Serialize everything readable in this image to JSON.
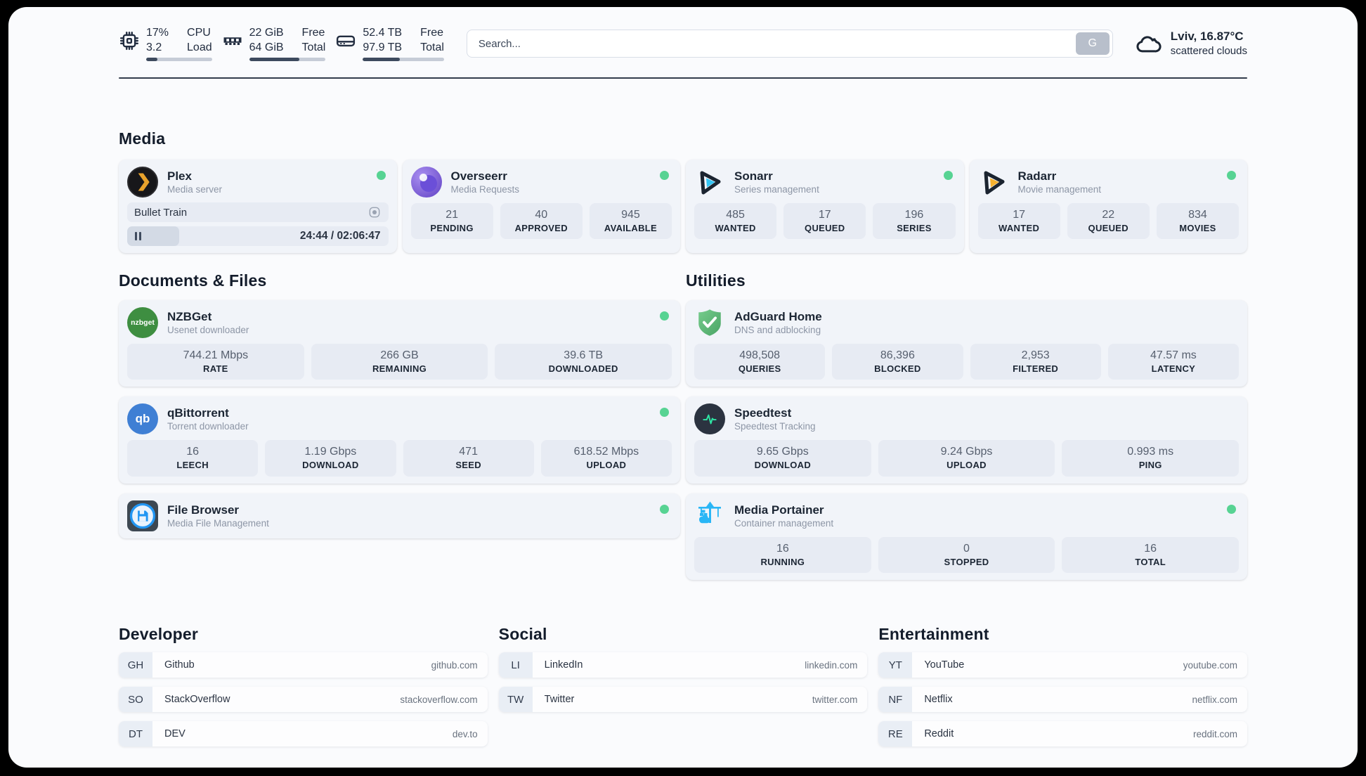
{
  "colors": {
    "status_online": "#57d393",
    "plex_orange": "#e8a22c",
    "overseerr_purple": "#8265d8",
    "sonarr_cyan": "#35c5f4",
    "radarr_yellow": "#f5b12f",
    "nzbget_green": "#3e8e41",
    "qbittorrent_blue": "#3f7fd4",
    "adguard_green": "#5cb85c",
    "speedtest_pulse_green": "#2ee6a4",
    "portainer_blue": "#29b6f6"
  },
  "header": {
    "stats": [
      {
        "icon": "cpu-icon",
        "value_top": "17%",
        "label_top": "CPU",
        "value_bottom": "3.2",
        "label_bottom": "Load",
        "progress": 17
      },
      {
        "icon": "ram-icon",
        "value_top": "22 GiB",
        "label_top": "Free",
        "value_bottom": "64 GiB",
        "label_bottom": "Total",
        "progress": 66
      },
      {
        "icon": "disk-icon",
        "value_top": "52.4 TB",
        "label_top": "Free",
        "value_bottom": "97.9 TB",
        "label_bottom": "Total",
        "progress": 46
      }
    ],
    "search": {
      "placeholder": "Search...",
      "button_label": "G"
    },
    "weather": {
      "location": "Lviv, 16.87°C",
      "condition": "scattered clouds"
    }
  },
  "sections": {
    "media": {
      "title": "Media",
      "apps": [
        {
          "name": "Plex",
          "description": "Media server",
          "online": true,
          "now_playing": {
            "title": "Bullet Train",
            "time": "24:44 / 02:06:47",
            "progress_percent": 20
          }
        },
        {
          "name": "Overseerr",
          "description": "Media Requests",
          "online": true,
          "stats": [
            {
              "value": "21",
              "label": "PENDING"
            },
            {
              "value": "40",
              "label": "APPROVED"
            },
            {
              "value": "945",
              "label": "AVAILABLE"
            }
          ]
        },
        {
          "name": "Sonarr",
          "description": "Series management",
          "online": true,
          "stats": [
            {
              "value": "485",
              "label": "WANTED"
            },
            {
              "value": "17",
              "label": "QUEUED"
            },
            {
              "value": "196",
              "label": "SERIES"
            }
          ]
        },
        {
          "name": "Radarr",
          "description": "Movie management",
          "online": true,
          "stats": [
            {
              "value": "17",
              "label": "WANTED"
            },
            {
              "value": "22",
              "label": "QUEUED"
            },
            {
              "value": "834",
              "label": "MOVIES"
            }
          ]
        }
      ]
    },
    "documents": {
      "title": "Documents & Files",
      "apps": [
        {
          "name": "NZBGet",
          "description": "Usenet downloader",
          "online": true,
          "icon_text": "nzbget",
          "stats": [
            {
              "value": "744.21 Mbps",
              "label": "RATE"
            },
            {
              "value": "266 GB",
              "label": "REMAINING"
            },
            {
              "value": "39.6 TB",
              "label": "DOWNLOADED"
            }
          ]
        },
        {
          "name": "qBittorrent",
          "description": "Torrent downloader",
          "online": true,
          "icon_text": "qb",
          "stats": [
            {
              "value": "16",
              "label": "LEECH"
            },
            {
              "value": "1.19 Gbps",
              "label": "DOWNLOAD"
            },
            {
              "value": "471",
              "label": "SEED"
            },
            {
              "value": "618.52 Mbps",
              "label": "UPLOAD"
            }
          ]
        },
        {
          "name": "File Browser",
          "description": "Media File Management",
          "online": true
        }
      ]
    },
    "utilities": {
      "title": "Utilities",
      "apps": [
        {
          "name": "AdGuard Home",
          "description": "DNS and adblocking",
          "online": false,
          "stats": [
            {
              "value": "498,508",
              "label": "QUERIES"
            },
            {
              "value": "86,396",
              "label": "BLOCKED"
            },
            {
              "value": "2,953",
              "label": "FILTERED"
            },
            {
              "value": "47.57 ms",
              "label": "LATENCY"
            }
          ]
        },
        {
          "name": "Speedtest",
          "description": "Speedtest Tracking",
          "online": false,
          "stats": [
            {
              "value": "9.65 Gbps",
              "label": "DOWNLOAD"
            },
            {
              "value": "9.24 Gbps",
              "label": "UPLOAD"
            },
            {
              "value": "0.993 ms",
              "label": "PING"
            }
          ]
        },
        {
          "name": "Media Portainer",
          "description": "Container management",
          "online": true,
          "stats": [
            {
              "value": "16",
              "label": "RUNNING"
            },
            {
              "value": "0",
              "label": "STOPPED"
            },
            {
              "value": "16",
              "label": "TOTAL"
            }
          ]
        }
      ]
    },
    "developer": {
      "title": "Developer",
      "links": [
        {
          "abbr": "GH",
          "name": "Github",
          "domain": "github.com"
        },
        {
          "abbr": "SO",
          "name": "StackOverflow",
          "domain": "stackoverflow.com"
        },
        {
          "abbr": "DT",
          "name": "DEV",
          "domain": "dev.to"
        }
      ]
    },
    "social": {
      "title": "Social",
      "links": [
        {
          "abbr": "LI",
          "name": "LinkedIn",
          "domain": "linkedin.com"
        },
        {
          "abbr": "TW",
          "name": "Twitter",
          "domain": "twitter.com"
        }
      ]
    },
    "entertainment": {
      "title": "Entertainment",
      "links": [
        {
          "abbr": "YT",
          "name": "YouTube",
          "domain": "youtube.com"
        },
        {
          "abbr": "NF",
          "name": "Netflix",
          "domain": "netflix.com"
        },
        {
          "abbr": "RE",
          "name": "Reddit",
          "domain": "reddit.com"
        }
      ]
    }
  }
}
